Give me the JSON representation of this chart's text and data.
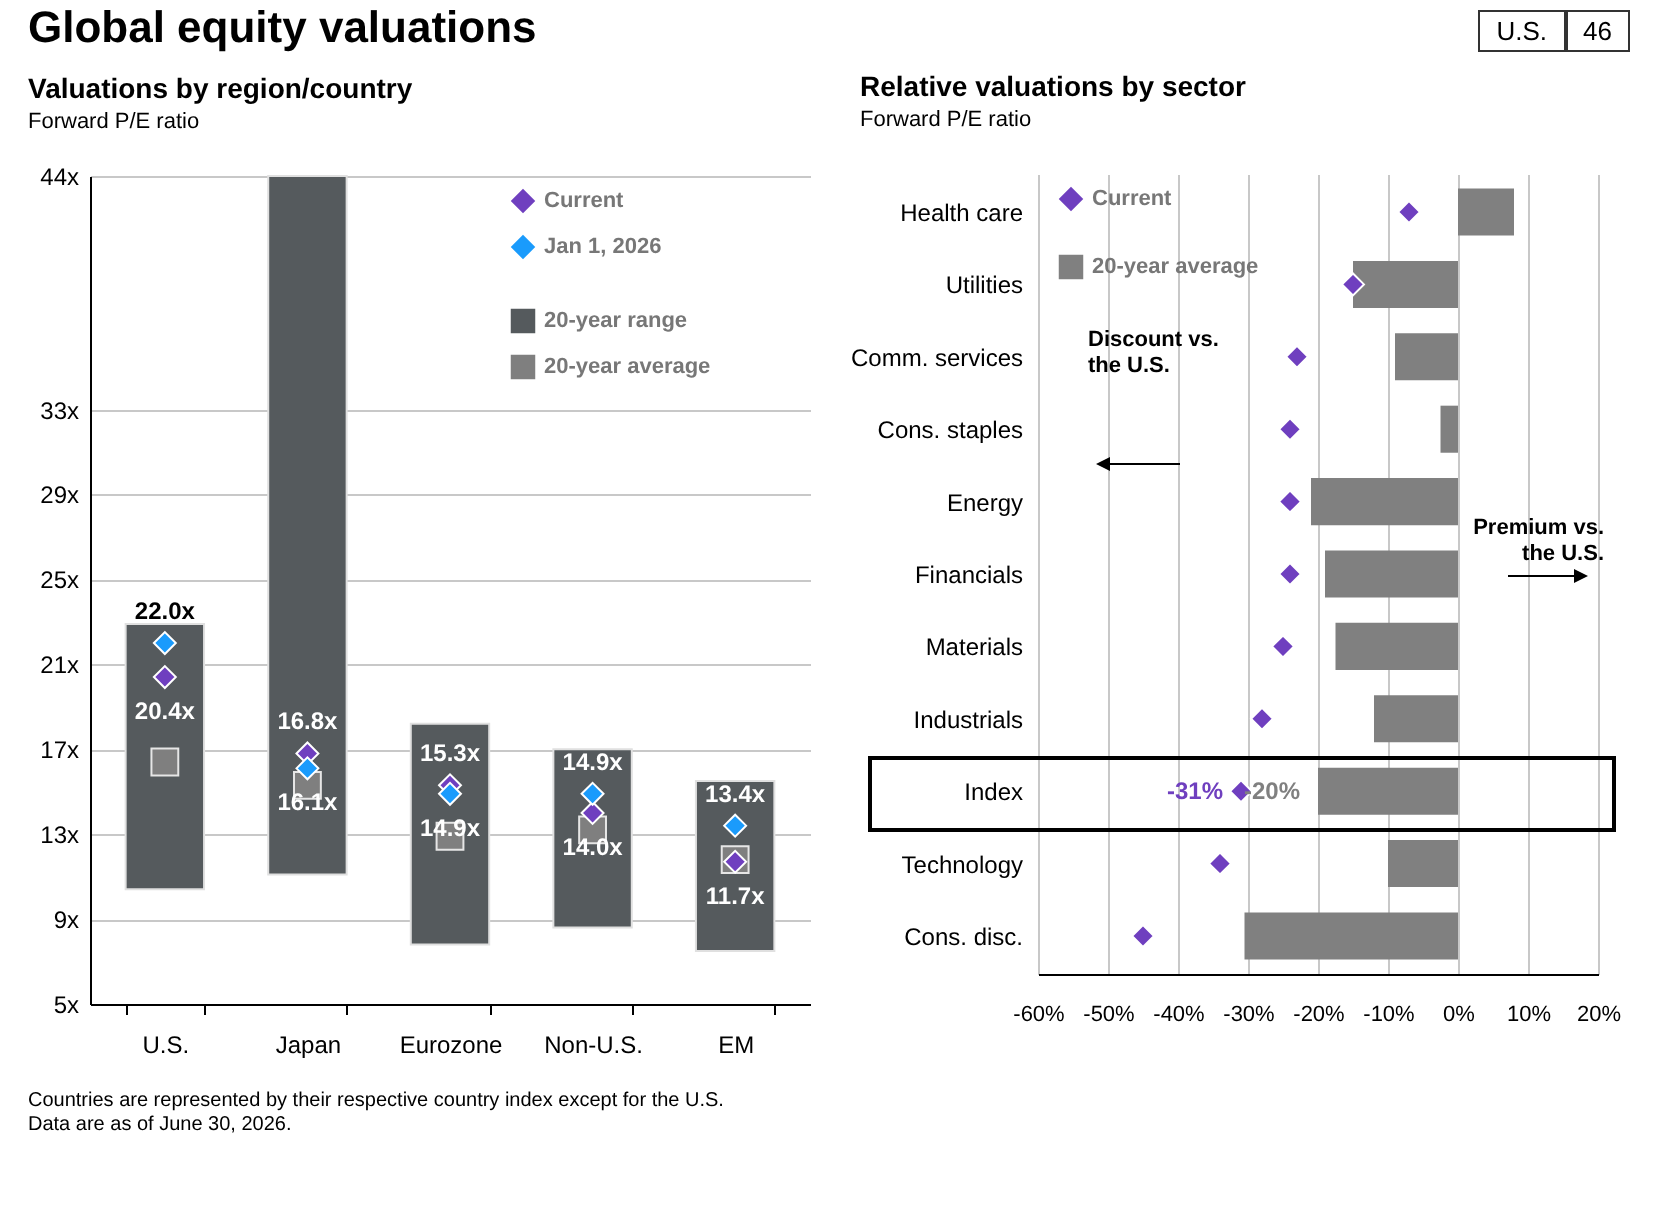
{
  "chart_data": [
    {
      "type": "bar",
      "title": "Valuations by region/country",
      "subtitle": "Forward P/E ratio",
      "categories": [
        "U.S.",
        "Japan",
        "Eurozone",
        "Non-U.S.",
        "EM"
      ],
      "series": [
        {
          "name": "20-year range",
          "type": "bar",
          "color": "#555a5d",
          "base": [
            10.4,
            11.1,
            7.8,
            8.6,
            7.5
          ],
          "values": [
            12.5,
            32.9,
            10.4,
            8.4,
            8.0
          ]
        },
        {
          "name": "20-year average",
          "type": "scatter",
          "marker": "square",
          "color": "#7f7f7f",
          "values": [
            16.4,
            15.3,
            12.9,
            13.2,
            11.8
          ]
        },
        {
          "name": "Current",
          "type": "scatter",
          "marker": "diamond",
          "color": "#6f3fbf",
          "values": [
            20.4,
            16.8,
            15.3,
            14.0,
            11.7
          ],
          "value_labels": [
            "20.4x",
            "16.8x",
            "15.3x",
            "14.0x",
            "11.7x"
          ]
        },
        {
          "name": "Jan 1, 2026",
          "type": "scatter",
          "marker": "diamond",
          "color": "#1a9bfc",
          "values": [
            22.0,
            16.1,
            14.9,
            14.9,
            13.4
          ],
          "value_labels": [
            "22.0x",
            "16.1x",
            "14.9x",
            "14.9x",
            "13.4x"
          ]
        }
      ],
      "ylim": [
        5,
        44
      ],
      "yticks": [
        {
          "value": 5,
          "label": "5x"
        },
        {
          "value": 9,
          "label": "9x"
        },
        {
          "value": 13,
          "label": "13x"
        },
        {
          "value": 17,
          "label": "17x"
        },
        {
          "value": 21,
          "label": "21x"
        },
        {
          "value": 25,
          "label": "25x"
        },
        {
          "value": 29,
          "label": "29x"
        },
        {
          "value": 33,
          "label": "33x"
        },
        {
          "value": 44,
          "label": "44x"
        }
      ],
      "grid": "y",
      "legend": "top right"
    },
    {
      "type": "bar",
      "orientation": "horizontal",
      "title": "Relative valuations by sector",
      "subtitle": "Forward P/E ratio",
      "categories": [
        "Health care",
        "Utilities",
        "Comm. services",
        "Cons. staples",
        "Energy",
        "Financials",
        "Materials",
        "Industrials",
        "Index",
        "Technology",
        "Cons. disc."
      ],
      "series": [
        {
          "name": "Current",
          "type": "scatter",
          "marker": "diamond",
          "color": "#6f3fbf",
          "values": [
            -7,
            -15,
            -23,
            -24,
            -24,
            -24,
            -25,
            -28,
            -31,
            -34,
            -45
          ],
          "value_labels": [
            null,
            null,
            null,
            null,
            null,
            null,
            null,
            null,
            "-31%",
            null,
            null
          ]
        },
        {
          "name": "20-year average",
          "type": "bar",
          "color": "#808080",
          "values": [
            8,
            -15,
            -9,
            -2.5,
            -21,
            -19,
            -17.5,
            -12,
            -20,
            -10,
            -30.5
          ],
          "value_labels": [
            null,
            null,
            null,
            null,
            null,
            null,
            null,
            null,
            "-20%",
            null,
            null
          ]
        }
      ],
      "xlim": [
        -60,
        20
      ],
      "xticks": [
        {
          "value": -60,
          "label": "-60%"
        },
        {
          "value": -50,
          "label": "-50%"
        },
        {
          "value": -40,
          "label": "-40%"
        },
        {
          "value": -30,
          "label": "-30%"
        },
        {
          "value": -20,
          "label": "-20%"
        },
        {
          "value": -10,
          "label": "-10%"
        },
        {
          "value": 0,
          "label": "0%"
        },
        {
          "value": 10,
          "label": "10%"
        },
        {
          "value": 20,
          "label": "20%"
        }
      ],
      "grid": "x",
      "legend": "top left",
      "annotations": [
        "Discount  vs. the U.S.",
        "Premium vs. the U.S."
      ]
    },
    {
      "type": "other",
      "title": "Global equity valuations",
      "annotations": [
        "U.S.",
        "46",
        "Countries are represented by their respective country index except for the U.S.",
        "Data are as of June 30, 2026."
      ]
    }
  ]
}
